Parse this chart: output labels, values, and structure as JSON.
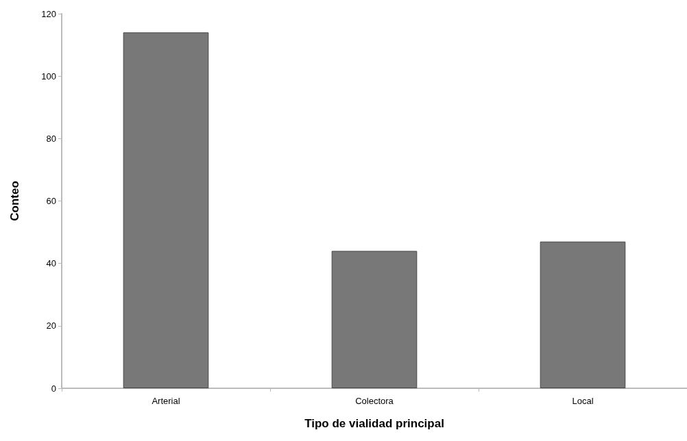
{
  "chart_data": {
    "type": "bar",
    "xlabel": "Tipo de vialidad principal",
    "ylabel": "Conteo",
    "categories": [
      "Arterial",
      "Colectora",
      "Local"
    ],
    "values": [
      114,
      44,
      47
    ],
    "color": "#787878",
    "ylim": [
      0,
      120
    ],
    "yticks": [
      0,
      20,
      40,
      60,
      80,
      100,
      120
    ],
    "grid": false
  }
}
